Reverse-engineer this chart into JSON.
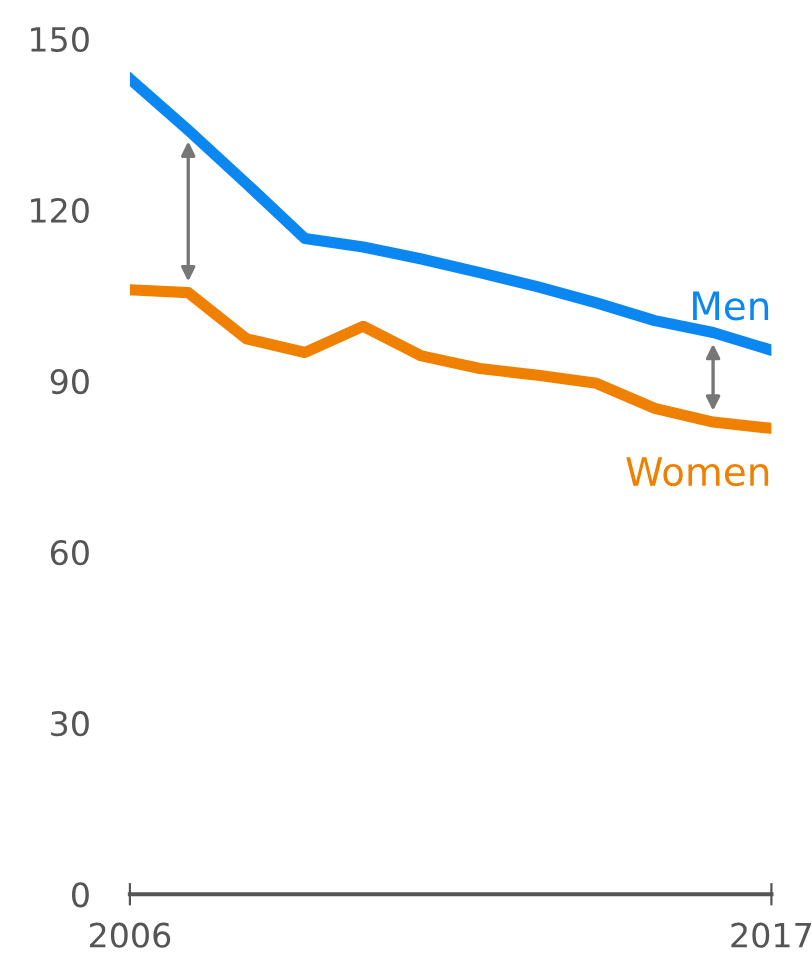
{
  "chart_data": {
    "type": "line",
    "x": [
      2006,
      2007,
      2008,
      2009,
      2010,
      2011,
      2012,
      2013,
      2014,
      2015,
      2016,
      2017
    ],
    "series": [
      {
        "name": "Men",
        "color": "#0a87f0",
        "values": [
          143,
          134,
          124.6,
          115,
          113.5,
          111.4,
          109,
          106.5,
          103.7,
          100.6,
          98.5,
          95.4
        ]
      },
      {
        "name": "Women",
        "color": "#f08000",
        "values": [
          106,
          105.5,
          97.4,
          95,
          99.6,
          94.4,
          92.2,
          91,
          89.6,
          85.2,
          82.8,
          81.7
        ]
      }
    ],
    "xlim": [
      2006,
      2017
    ],
    "xticks": [
      2006,
      2017
    ],
    "ylim": [
      0,
      150
    ],
    "yticks": [
      0,
      30,
      60,
      90,
      120,
      150
    ],
    "grid": false,
    "legend": false,
    "marker": "none",
    "line_style": "solid"
  }
}
